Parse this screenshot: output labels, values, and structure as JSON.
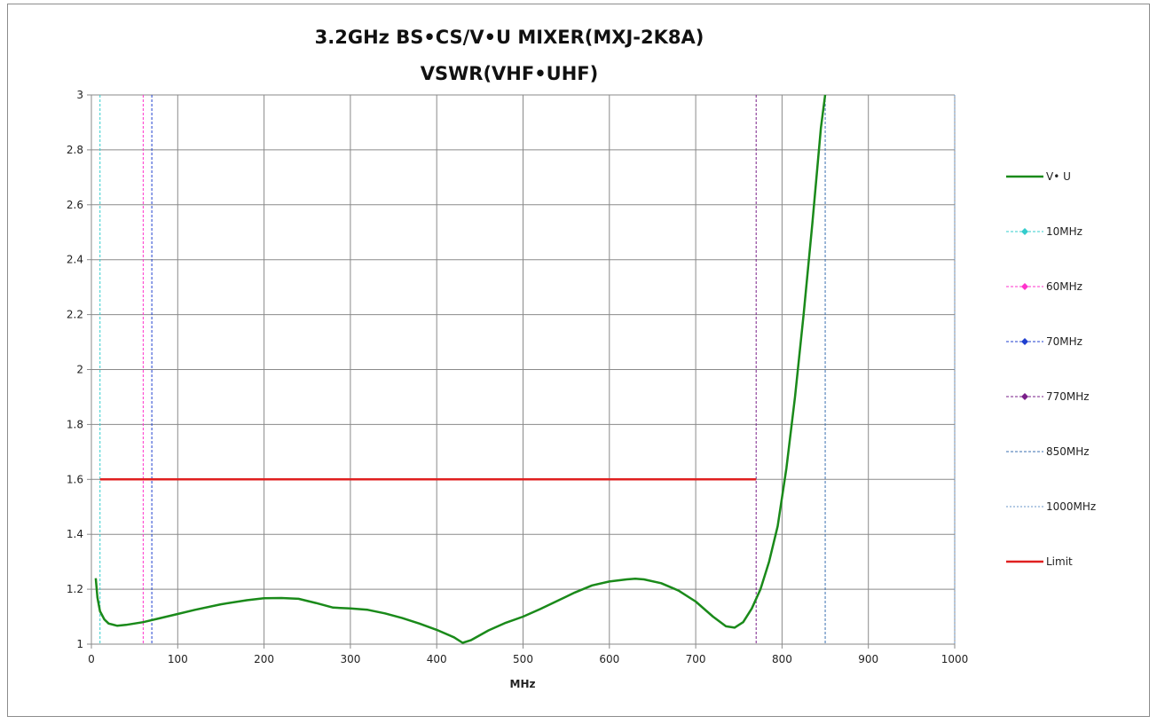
{
  "chart_data": {
    "type": "line",
    "title_lines": [
      "3.2GHz BS•CS/V•U MIXER(MXJ-2K8A)",
      "VSWR(VHF•UHF)"
    ],
    "xlabel": "MHz",
    "ylabel": "",
    "xlim": [
      0,
      1000
    ],
    "ylim": [
      1,
      3
    ],
    "x_ticks": [
      0,
      100,
      200,
      300,
      400,
      500,
      600,
      700,
      800,
      900,
      1000
    ],
    "y_ticks": [
      1,
      1.2,
      1.4,
      1.6,
      1.8,
      2,
      2.2,
      2.4,
      2.6,
      2.8,
      3
    ],
    "y_tick_labels": [
      "1",
      "1.2",
      "1.4",
      "1.6",
      "1.8",
      "2",
      "2.2",
      "2.4",
      "2.6",
      "2.8",
      "3"
    ],
    "grid": true,
    "legend_position": "right",
    "series": [
      {
        "name": "V• U",
        "kind": "curve",
        "color": "#1a8a1a",
        "x": [
          5,
          7,
          10,
          15,
          20,
          30,
          40,
          60,
          80,
          100,
          120,
          150,
          180,
          200,
          220,
          240,
          260,
          280,
          300,
          320,
          340,
          360,
          380,
          400,
          420,
          430,
          440,
          460,
          480,
          500,
          520,
          540,
          560,
          580,
          600,
          620,
          630,
          640,
          660,
          680,
          700,
          720,
          735,
          745,
          755,
          765,
          775,
          785,
          795,
          805,
          815,
          825,
          835,
          845,
          850
        ],
        "y": [
          1.24,
          1.17,
          1.12,
          1.09,
          1.075,
          1.067,
          1.07,
          1.08,
          1.095,
          1.11,
          1.125,
          1.145,
          1.16,
          1.167,
          1.168,
          1.165,
          1.15,
          1.133,
          1.13,
          1.125,
          1.112,
          1.095,
          1.075,
          1.052,
          1.025,
          1.005,
          1.015,
          1.05,
          1.078,
          1.1,
          1.128,
          1.158,
          1.188,
          1.214,
          1.228,
          1.236,
          1.238,
          1.236,
          1.222,
          1.195,
          1.155,
          1.1,
          1.065,
          1.06,
          1.08,
          1.13,
          1.2,
          1.3,
          1.43,
          1.64,
          1.9,
          2.2,
          2.53,
          2.88,
          3.0
        ]
      },
      {
        "name": "10MHz",
        "kind": "vline",
        "x_value": 10,
        "color": "#33cccc",
        "marker": "diamond",
        "dash": "3,2"
      },
      {
        "name": "60MHz",
        "kind": "vline",
        "x_value": 60,
        "color": "#ff33cc",
        "marker": "diamond",
        "dash": "3,2"
      },
      {
        "name": "70MHz",
        "kind": "vline",
        "x_value": 70,
        "color": "#1f3fcf",
        "marker": "diamond",
        "dash": "3,2"
      },
      {
        "name": "770MHz",
        "kind": "vline",
        "x_value": 770,
        "color": "#7a1f8a",
        "marker": "diamond",
        "dash": "3,2"
      },
      {
        "name": "850MHz",
        "kind": "vline",
        "x_value": 850,
        "color": "#3a6fb0",
        "marker": "none",
        "dash": "3,2"
      },
      {
        "name": "1000MHz",
        "kind": "vline",
        "x_value": 1000,
        "color": "#6a96c8",
        "marker": "none",
        "dash": "2,2"
      },
      {
        "name": "Limit",
        "kind": "hline",
        "y_value": 1.6,
        "x_range": [
          10,
          770
        ],
        "color": "#e02020"
      }
    ]
  }
}
